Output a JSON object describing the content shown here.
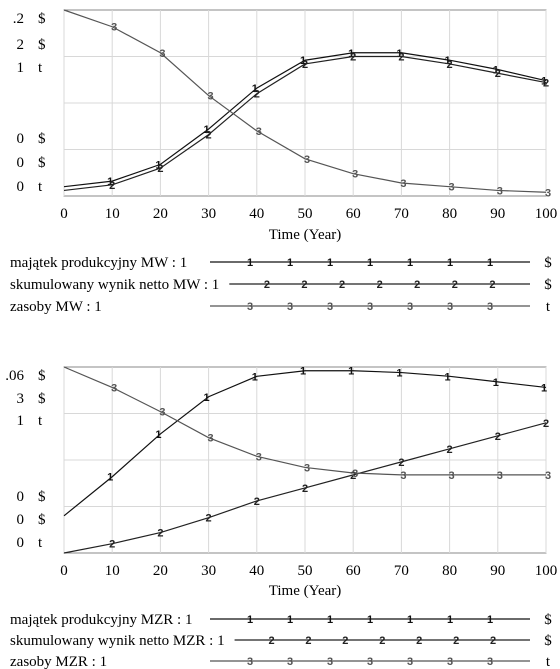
{
  "chart_data": [
    {
      "type": "line",
      "xlabel": "Time (Year)",
      "xlim": [
        0,
        100
      ],
      "x_ticks": [
        "0",
        "10",
        "20",
        "30",
        "40",
        "50",
        "60",
        "70",
        "80",
        "90",
        "100"
      ],
      "y_axis_labels": [
        {
          "top": ".2",
          "bottom": "0",
          "unit": "$"
        },
        {
          "top": "2",
          "bottom": "0",
          "unit": "$"
        },
        {
          "top": "1",
          "bottom": "0",
          "unit": "t"
        }
      ],
      "grid": true,
      "legend_position": "bottom",
      "series": [
        {
          "name": "majątek produkcyjny MW : 1",
          "marker": "1",
          "unit": "$",
          "color": "#111111",
          "x": [
            0,
            10,
            20,
            30,
            40,
            50,
            60,
            70,
            80,
            90,
            100
          ],
          "values": [
            0.05,
            0.08,
            0.17,
            0.36,
            0.58,
            0.73,
            0.77,
            0.77,
            0.73,
            0.68,
            0.62
          ]
        },
        {
          "name": "skumulowany wynik netto MW : 1",
          "marker": "2",
          "unit": "$",
          "color": "#222222",
          "x": [
            0,
            10,
            20,
            30,
            40,
            50,
            60,
            70,
            80,
            90,
            100
          ],
          "values": [
            0.03,
            0.06,
            0.15,
            0.33,
            0.55,
            0.71,
            0.75,
            0.75,
            0.71,
            0.66,
            0.61
          ]
        },
        {
          "name": "zasoby MW : 1",
          "marker": "3",
          "unit": "t",
          "color": "#555555",
          "x": [
            0,
            10,
            20,
            30,
            40,
            50,
            60,
            70,
            80,
            90,
            100
          ],
          "values": [
            1.0,
            0.91,
            0.77,
            0.54,
            0.35,
            0.2,
            0.12,
            0.07,
            0.05,
            0.03,
            0.02
          ]
        }
      ]
    },
    {
      "type": "line",
      "xlabel": "Time (Year)",
      "xlim": [
        0,
        100
      ],
      "x_ticks": [
        "0",
        "10",
        "20",
        "30",
        "40",
        "50",
        "60",
        "70",
        "80",
        "90",
        "100"
      ],
      "y_axis_labels": [
        {
          "top": ".06",
          "bottom": "0",
          "unit": "$"
        },
        {
          "top": "3",
          "bottom": "0",
          "unit": "$"
        },
        {
          "top": "1",
          "bottom": "0",
          "unit": "t"
        }
      ],
      "grid": true,
      "legend_position": "bottom",
      "series": [
        {
          "name": "majątek produkcyjny MZR : 1",
          "marker": "1",
          "unit": "$",
          "color": "#111111",
          "x": [
            0,
            10,
            20,
            30,
            40,
            50,
            60,
            70,
            80,
            90,
            100
          ],
          "values": [
            0.2,
            0.41,
            0.64,
            0.84,
            0.95,
            0.98,
            0.98,
            0.97,
            0.95,
            0.92,
            0.89
          ]
        },
        {
          "name": "skumulowany wynik netto MZR : 1",
          "marker": "2",
          "unit": "$",
          "color": "#222222",
          "x": [
            0,
            10,
            20,
            30,
            40,
            50,
            60,
            70,
            80,
            90,
            100
          ],
          "values": [
            0.0,
            0.05,
            0.11,
            0.19,
            0.28,
            0.35,
            0.42,
            0.49,
            0.56,
            0.63,
            0.7
          ]
        },
        {
          "name": "zasoby MZR : 1",
          "marker": "3",
          "unit": "t",
          "color": "#555555",
          "x": [
            0,
            10,
            20,
            30,
            40,
            50,
            60,
            70,
            80,
            90,
            100
          ],
          "values": [
            1.0,
            0.89,
            0.76,
            0.62,
            0.52,
            0.46,
            0.43,
            0.42,
            0.42,
            0.42,
            0.42
          ]
        }
      ]
    }
  ]
}
